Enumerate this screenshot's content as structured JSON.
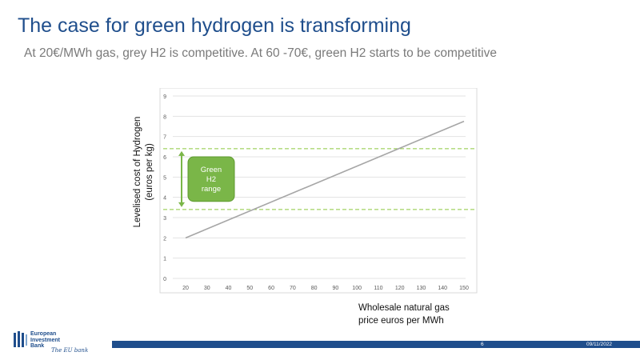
{
  "header": {
    "title": "The case for green hydrogen is transforming",
    "subtitle": "At 20€/MWh gas, grey H2 is competitive. At 60  -70€, green H2  starts to be competitive"
  },
  "footer": {
    "page_number": "6",
    "date": "09/11/2022",
    "logo_line1": "European",
    "logo_line2": "Investment",
    "logo_line3": "Bank",
    "logo_tagline": "The EU bank"
  },
  "colors": {
    "title": "#1f4e8c",
    "line": "#a6a6a6",
    "green": "#7ab648",
    "dashed": "#8cc63f",
    "footer_bar": "#1f4e8c"
  },
  "chart_data": {
    "type": "line",
    "xlabel_line1": "Wholesale natural gas",
    "xlabel_line2": "price euros per MWh",
    "ylabel_line1": "Levelised cost of Hydrogen",
    "ylabel_line2": "(euros per kg)",
    "x_ticks": [
      20,
      30,
      40,
      50,
      60,
      70,
      80,
      90,
      100,
      110,
      120,
      130,
      140,
      150
    ],
    "y_ticks": [
      0,
      1,
      2,
      3,
      4,
      5,
      6,
      7,
      8,
      9
    ],
    "xlim": [
      20,
      150
    ],
    "ylim": [
      0,
      9
    ],
    "grid": true,
    "series": [
      {
        "x": [
          20,
          150
        ],
        "y": [
          2.0,
          7.75
        ]
      }
    ],
    "reference_lines": [
      6.4,
      3.4
    ],
    "annotation": {
      "lines": [
        "Green",
        "H2",
        "range"
      ],
      "y_low": 3.4,
      "y_high": 6.4
    }
  }
}
